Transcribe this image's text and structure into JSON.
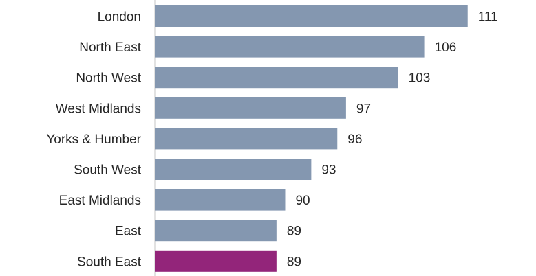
{
  "chart_data": {
    "type": "bar",
    "orientation": "horizontal",
    "title": "",
    "xlabel": "",
    "ylabel": "",
    "categories": [
      "London",
      "North East",
      "North West",
      "West Midlands",
      "Yorks & Humber",
      "South West",
      "East Midlands",
      "East",
      "South East"
    ],
    "values": [
      111,
      106,
      103,
      97,
      96,
      93,
      90,
      89,
      89
    ],
    "value_labels": [
      "111",
      "106",
      "103",
      "97",
      "96",
      "93",
      "90",
      "89",
      "89"
    ],
    "xlim": [
      75,
      113
    ],
    "grid": false,
    "legend": "none",
    "colors": {
      "default_bar": "#8497b0",
      "highlight_bar": "#93257a",
      "label_text": "#262626",
      "axis_line": "#d9d9d9"
    },
    "highlight_category": "South East"
  }
}
